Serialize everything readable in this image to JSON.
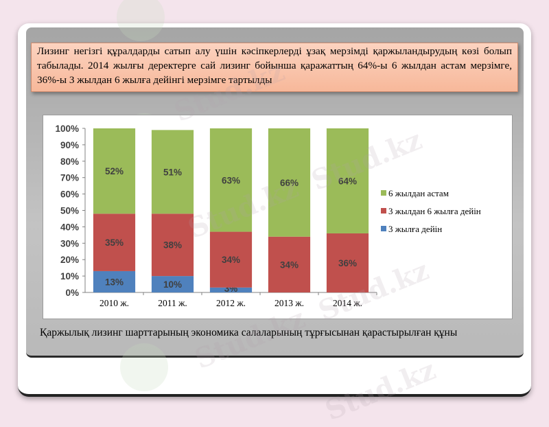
{
  "intro_text": "Лизинг негізгі құралдарды сатып алу үшін кәсіпкерлерді ұзақ мерзімді қаржыландырудың көзі болып табылады. 2014 жылғы деректерге сай лизинг бойынша қаражаттың 64%-ы 6 жылдан астам мерзімге, 36%-ы 3 жылдан 6 жылға дейінгі мерзімге тартылды",
  "caption": "Қаржылық лизинг шарттарының экономика салаларының тұрғысынан қарастырылған құны",
  "watermark": "Stud.kz",
  "chart_data": {
    "type": "bar",
    "stacked": true,
    "categories": [
      "2010 ж.",
      "2011 ж.",
      "2012 ж.",
      "2013 ж.",
      "2014 ж."
    ],
    "series": [
      {
        "name": "3 жылға дейін",
        "values": [
          13,
          10,
          3,
          0,
          0
        ],
        "labels": [
          "13%",
          "10%",
          "3%",
          "",
          ""
        ],
        "color": "#4f81bd"
      },
      {
        "name": "3 жылдан 6 жылға дейін",
        "values": [
          35,
          38,
          34,
          34,
          36
        ],
        "labels": [
          "35%",
          "38%",
          "34%",
          "34%",
          "36%"
        ],
        "color": "#c0504d"
      },
      {
        "name": "6 жылдан астам",
        "values": [
          52,
          51,
          63,
          66,
          64
        ],
        "labels": [
          "52%",
          "51%",
          "63%",
          "66%",
          "64%"
        ],
        "color": "#9bbb59"
      }
    ],
    "yticks": [
      "0%",
      "10%",
      "20%",
      "30%",
      "40%",
      "50%",
      "60%",
      "70%",
      "80%",
      "90%",
      "100%"
    ],
    "ylim": [
      0,
      100
    ],
    "grid": false,
    "legend": {
      "position": "right",
      "order": [
        "6 жылдан астам",
        "3 жылдан 6 жылға дейін",
        "3 жылға дейін"
      ]
    }
  }
}
